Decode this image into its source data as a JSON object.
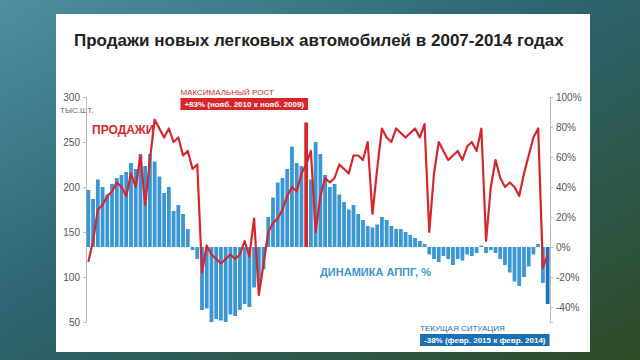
{
  "chart_data": {
    "type": "bar",
    "title": "Продажи новых легковых автомобилей в 2007-2014 годах",
    "y_label": "ТЫС.ШТ.",
    "categories": [
      null,
      null,
      null,
      null,
      null,
      null,
      null,
      null,
      null,
      null,
      null,
      null,
      null,
      null,
      null,
      null,
      null,
      null,
      null,
      null,
      null,
      null,
      null,
      null,
      null,
      null,
      null,
      null,
      null,
      null,
      null,
      null,
      null,
      null,
      null,
      null,
      null,
      null,
      null,
      null,
      null,
      null,
      null,
      null,
      null,
      null,
      null,
      null,
      null,
      null,
      null,
      null,
      null,
      null,
      null,
      null,
      null,
      null,
      null,
      null,
      null,
      null,
      null,
      null,
      null,
      null,
      null,
      null,
      null,
      null,
      null,
      null,
      null,
      null,
      null,
      null,
      null,
      null,
      null,
      null,
      null,
      null,
      null,
      null,
      null,
      null,
      null,
      null,
      null,
      null,
      null,
      null,
      null,
      null,
      null,
      null,
      null,
      null
    ],
    "series": [
      {
        "name": "ДИНАМИКА АППГ, %",
        "type": "bar",
        "axis": "y2",
        "color": "#3a96d4",
        "colors": [
          "#3a96d4",
          "#3a96d4",
          "#3a96d4",
          "#3a96d4",
          "#3a96d4",
          "#3a96d4",
          "#3a96d4",
          "#3a96d4",
          "#3a96d4",
          "#3a96d4",
          "#3a96d4",
          "#3a96d4",
          "#3a96d4",
          "#3a96d4",
          "#3a96d4",
          "#3a96d4",
          "#3a96d4",
          "#3a96d4",
          "#3a96d4",
          "#3a96d4",
          "#3a96d4",
          "#3a96d4",
          "#3a96d4",
          "#3a96d4",
          "#3a96d4",
          "#3a96d4",
          "#3a96d4",
          "#3a96d4",
          "#3a96d4",
          "#3a96d4",
          "#3a96d4",
          "#3a96d4",
          "#3a96d4",
          "#3a96d4",
          "#3a96d4",
          "#3a96d4",
          "#3a96d4",
          "#3a96d4",
          "#3a96d4",
          "#3a96d4",
          "#3a96d4",
          "#3a96d4",
          "#3a96d4",
          "#3a96d4",
          "#3a96d4",
          "#3a96d4",
          "#d7262b",
          "#3a96d4",
          "#3a96d4",
          "#3a96d4",
          "#3a96d4",
          "#3a96d4",
          "#3a96d4",
          "#3a96d4",
          "#3a96d4",
          "#3a96d4",
          "#3a96d4",
          "#3a96d4",
          "#3a96d4",
          "#3a96d4",
          "#3a96d4",
          "#3a96d4",
          "#3a96d4",
          "#3a96d4",
          "#3a96d4",
          "#3a96d4",
          "#3a96d4",
          "#3a96d4",
          "#3a96d4",
          "#3a96d4",
          "#3a96d4",
          "#3a96d4",
          "#3a96d4",
          "#3a96d4",
          "#3a96d4",
          "#3a96d4",
          "#3a96d4",
          "#3a96d4",
          "#3a96d4",
          "#3a96d4",
          "#3a96d4",
          "#3a96d4",
          "#3a96d4",
          "#3a96d4",
          "#3a96d4",
          "#3a96d4",
          "#3a96d4",
          "#3a96d4",
          "#3a96d4",
          "#3a96d4",
          "#3a96d4",
          "#3a96d4",
          "#3a96d4",
          "#3a96d4",
          "#3a96d4",
          "#3a96d4",
          "#3a96d4",
          "#1a6fb5"
        ],
        "values": [
          38,
          32,
          45,
          40,
          35,
          42,
          46,
          48,
          50,
          56,
          52,
          62,
          54,
          62,
          57,
          47,
          36,
          40,
          24,
          28,
          22,
          12,
          -2,
          -8,
          -42,
          -41,
          -50,
          -48,
          -49,
          -50,
          -45,
          -46,
          -42,
          -38,
          -40,
          -27,
          -24,
          -15,
          20,
          33,
          43,
          46,
          52,
          67,
          56,
          54,
          83,
          45,
          70,
          62,
          48,
          40,
          42,
          35,
          30,
          25,
          28,
          22,
          18,
          14,
          13,
          15,
          20,
          18,
          14,
          12,
          12,
          10,
          8,
          6,
          4,
          2,
          -5,
          -8,
          -10,
          -6,
          -8,
          -12,
          -8,
          -9,
          -5,
          -6,
          -4,
          1,
          -4,
          -2,
          -4,
          -8,
          -12,
          -17,
          -23,
          -26,
          -20,
          -13,
          -5,
          2,
          -24,
          -38
        ]
      },
      {
        "name": "ПРОДАЖИ",
        "type": "line",
        "color": "#d7262b",
        "values": [
          117,
          140,
          175,
          180,
          190,
          195,
          205,
          200,
          190,
          215,
          200,
          235,
          180,
          230,
          275,
          265,
          255,
          265,
          250,
          255,
          235,
          240,
          220,
          225,
          105,
          135,
          125,
          120,
          115,
          120,
          125,
          120,
          125,
          140,
          123,
          165,
          80,
          115,
          150,
          160,
          165,
          175,
          190,
          200,
          195,
          215,
          225,
          240,
          150,
          190,
          210,
          205,
          210,
          225,
          220,
          215,
          235,
          235,
          230,
          250,
          170,
          220,
          265,
          255,
          250,
          265,
          260,
          255,
          260,
          265,
          255,
          270,
          150,
          215,
          250,
          240,
          230,
          235,
          240,
          230,
          245,
          250,
          240,
          265,
          140,
          200,
          230,
          210,
          200,
          205,
          200,
          190,
          215,
          235,
          255,
          265,
          110,
          125
        ]
      }
    ],
    "ylim": [
      50,
      300
    ],
    "yticks": [
      50,
      100,
      150,
      200,
      250,
      300
    ],
    "y2lim": [
      -50,
      100
    ],
    "y2ticks": [
      {
        "value": -40,
        "label": "-40%"
      },
      {
        "value": -20,
        "label": "-20%"
      },
      {
        "value": 0,
        "label": "0%"
      },
      {
        "value": 20,
        "label": "20%"
      },
      {
        "value": 40,
        "label": "40%"
      },
      {
        "value": 60,
        "label": "60%"
      },
      {
        "value": 80,
        "label": "80%"
      },
      {
        "value": 100,
        "label": "100%"
      }
    ],
    "grid": false,
    "tick_labels": "y",
    "annotations": [
      {
        "title": "МАКСИМАЛЬНЫЙ РОСТ",
        "text": "+83% (нояб. 2010 к нояб. 2009)",
        "color": "#d7262b"
      },
      {
        "title": "ТЕКУЩАЯ СИТУАЦИЯ",
        "text": "-38% (февр. 2015 к февр. 2014)",
        "color": "#1a6fb5"
      }
    ]
  }
}
